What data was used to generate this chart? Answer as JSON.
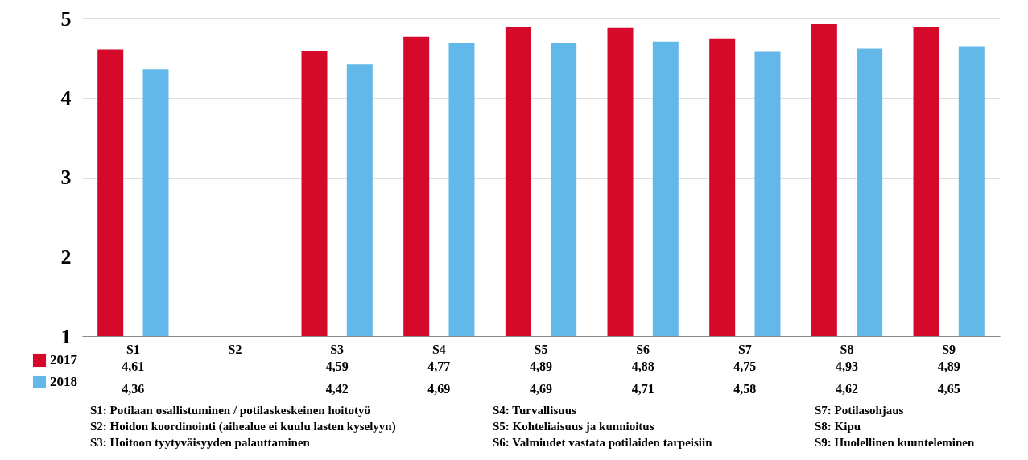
{
  "chart_data": {
    "type": "bar",
    "categories": [
      "S1",
      "S2",
      "S3",
      "S4",
      "S5",
      "S6",
      "S7",
      "S8",
      "S9"
    ],
    "series": [
      {
        "name": "2017",
        "color": "#d50a2a",
        "values": [
          4.61,
          null,
          4.59,
          4.77,
          4.89,
          4.88,
          4.75,
          4.93,
          4.89
        ],
        "value_labels": [
          "4,61",
          null,
          "4,59",
          "4,77",
          "4,89",
          "4,88",
          "4,75",
          "4,93",
          "4,89"
        ]
      },
      {
        "name": "2018",
        "color": "#62b8e8",
        "values": [
          4.36,
          null,
          4.42,
          4.69,
          4.69,
          4.71,
          4.58,
          4.62,
          4.65
        ],
        "value_labels": [
          "4,36",
          null,
          "4,42",
          "4,69",
          "4,69",
          "4,71",
          "4,58",
          "4,62",
          "4,65"
        ]
      }
    ],
    "ylim": [
      1,
      5
    ],
    "yticks": [
      1,
      2,
      3,
      4,
      5
    ],
    "grid": "y",
    "legend": "bottom left",
    "annotations": [
      "S1: Potilaan osallistuminen / potilaskeskeinen hoitotyö",
      "S2: Hoidon koordinointi (aihealue ei kuulu lasten kyselyyn)",
      "S3: Hoitoon tyytyväisyyden palauttaminen",
      "S4: Turvallisuus",
      "S5: Kohteliaisuus ja kunnioitus",
      "S6: Valmiudet vastata potilaiden tarpeisiin",
      "S7: Potilasohjaus",
      "S8: Kipu",
      "S9: Huolellinen kuunteleminen"
    ]
  }
}
